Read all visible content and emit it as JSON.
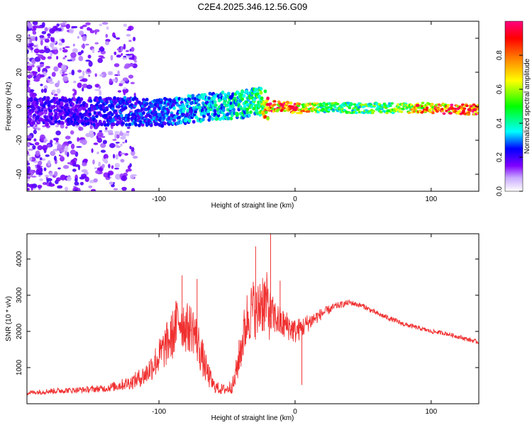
{
  "page_title": "C2E4.2025.346.12.56.G09",
  "chart_data": [
    {
      "type": "heatmap",
      "name": "spectrogram",
      "xlabel": "Height of straight line (km)",
      "ylabel": "Frequency (Hz)",
      "xlim": [
        -197,
        135
      ],
      "ylim": [
        -50,
        50
      ],
      "x_ticks": [
        -100,
        0,
        100
      ],
      "x_tick_labels": [
        "-100",
        "0",
        "100"
      ],
      "y_ticks": [
        -40,
        -20,
        0,
        20,
        40
      ],
      "y_tick_labels": [
        "-40",
        "-20",
        "0",
        "20",
        "40"
      ],
      "colorbar": {
        "label": "Normalized spectral amplitude",
        "range": [
          0,
          1
        ],
        "ticks": [
          0.0,
          0.2,
          0.4,
          0.6,
          0.8
        ],
        "tick_labels": [
          "0.0",
          "0.2",
          "0.4",
          "0.6",
          "0.8"
        ],
        "colors": [
          "#ffffff",
          "#c8a8ff",
          "#8000ff",
          "#0000ff",
          "#00ffff",
          "#00ff00",
          "#ffff00",
          "#ff8000",
          "#ff0000",
          "#ff0080"
        ]
      },
      "ridge": {
        "description_points_x": [
          -197,
          -150,
          -120,
          -100,
          -80,
          -60,
          -40,
          -25,
          -20,
          -10,
          0,
          20,
          40,
          60,
          80,
          100,
          120,
          135
        ],
        "center_freq_hz": [
          -3,
          -3,
          -3,
          -4,
          -2,
          0,
          1,
          3,
          0,
          0,
          -1,
          -1,
          -1,
          -1,
          -1,
          -1,
          -2,
          -2
        ],
        "amplitude": [
          0.2,
          0.25,
          0.3,
          0.3,
          0.35,
          0.4,
          0.45,
          0.55,
          0.95,
          0.95,
          0.95,
          0.55,
          0.55,
          0.55,
          0.6,
          0.95,
          0.95,
          1.0
        ]
      }
    },
    {
      "type": "line",
      "name": "snr",
      "xlabel": "Height of straight line (km)",
      "ylabel": "SNR (10 * v/v)",
      "xlim": [
        -197,
        135
      ],
      "ylim": [
        0,
        4700
      ],
      "x_ticks": [
        -100,
        0,
        100
      ],
      "x_tick_labels": [
        "-100",
        "0",
        "100"
      ],
      "y_ticks": [
        1000,
        2000,
        3000,
        4000
      ],
      "y_tick_labels": [
        "1000",
        "2000",
        "3000",
        "4000"
      ],
      "color": "#f03030",
      "series": [
        {
          "name": "SNR",
          "x": [
            -197,
            -180,
            -160,
            -140,
            -130,
            -120,
            -110,
            -100,
            -90,
            -85,
            -80,
            -75,
            -70,
            -65,
            -60,
            -55,
            -50,
            -45,
            -40,
            -35,
            -30,
            -28,
            -25,
            -22,
            -20,
            -18,
            -15,
            -10,
            -5,
            0,
            5,
            10,
            20,
            30,
            40,
            50,
            60,
            70,
            80,
            90,
            100,
            110,
            120,
            135
          ],
          "y": [
            300,
            350,
            380,
            420,
            500,
            600,
            800,
            1300,
            1900,
            2400,
            2100,
            2100,
            1500,
            900,
            500,
            400,
            400,
            550,
            1500,
            2400,
            2700,
            2400,
            2900,
            2800,
            2700,
            2400,
            2400,
            2200,
            2150,
            2000,
            2100,
            2250,
            2500,
            2700,
            2800,
            2700,
            2500,
            2350,
            2200,
            2100,
            2000,
            1950,
            1850,
            1700
          ],
          "noise": [
            60,
            80,
            80,
            100,
            150,
            200,
            300,
            500,
            700,
            800,
            700,
            700,
            600,
            400,
            200,
            150,
            150,
            250,
            600,
            800,
            800,
            800,
            1000,
            900,
            900,
            700,
            500,
            450,
            400,
            350,
            300,
            250,
            150,
            100,
            80,
            70,
            70,
            70,
            70,
            60,
            60,
            60,
            60,
            60
          ]
        }
      ],
      "spikes": [
        {
          "x": -83,
          "y": 3550
        },
        {
          "x": -72,
          "y": 3450
        },
        {
          "x": -29,
          "y": 4350
        },
        {
          "x": -18,
          "y": 4700
        },
        {
          "x": -11,
          "y": 3400
        },
        {
          "x": 5,
          "y": 520
        }
      ]
    }
  ]
}
